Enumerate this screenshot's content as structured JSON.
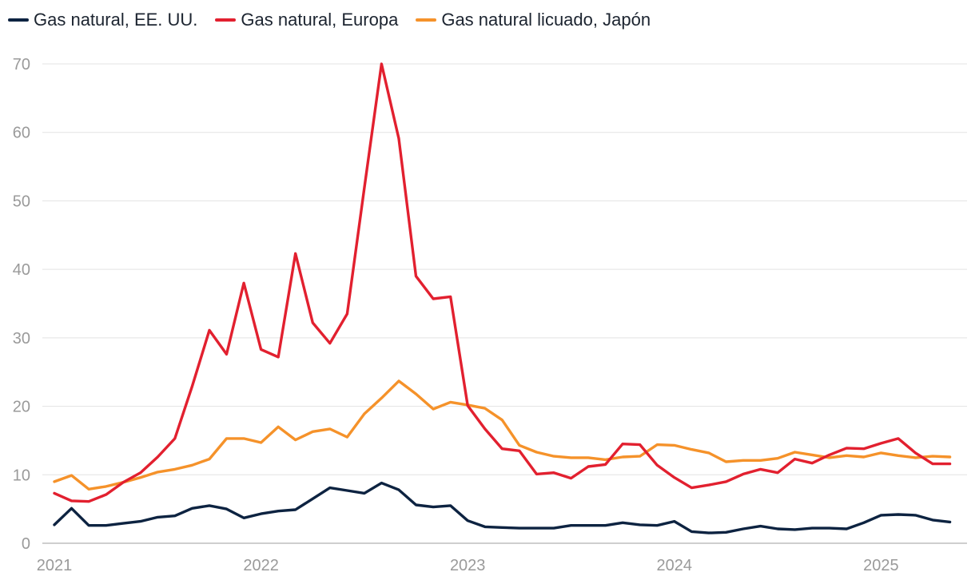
{
  "chart_data": {
    "type": "line",
    "title": "",
    "xlabel": "",
    "ylabel": "",
    "ylim": [
      0,
      70
    ],
    "yticks": [
      "0",
      "10",
      "20",
      "30",
      "40",
      "50",
      "60",
      "70"
    ],
    "xticks": [
      "2021",
      "2022",
      "2023",
      "2024",
      "2025"
    ],
    "x_start": "2021-01",
    "x_step": "month",
    "grid": true,
    "legend_position": "top-left",
    "series": [
      {
        "name": "Gas natural, EE. UU.",
        "color": "#0d2341",
        "values": [
          2.7,
          5.1,
          2.6,
          2.6,
          2.9,
          3.2,
          3.8,
          4.0,
          5.1,
          5.5,
          5.0,
          3.7,
          4.3,
          4.7,
          4.9,
          6.5,
          8.1,
          7.7,
          7.3,
          8.8,
          7.8,
          5.6,
          5.3,
          5.5,
          3.3,
          2.4,
          2.3,
          2.2,
          2.2,
          2.2,
          2.6,
          2.6,
          2.6,
          3.0,
          2.7,
          2.6,
          3.2,
          1.7,
          1.5,
          1.6,
          2.1,
          2.5,
          2.1,
          2.0,
          2.2,
          2.2,
          2.1,
          3.0,
          4.1,
          4.2,
          4.1,
          3.4,
          3.1
        ]
      },
      {
        "name": "Gas natural, Europa",
        "color": "#e2202f",
        "values": [
          7.3,
          6.2,
          6.1,
          7.1,
          8.9,
          10.3,
          12.6,
          15.3,
          22.9,
          31.1,
          27.6,
          38.0,
          28.3,
          27.2,
          42.3,
          32.2,
          29.2,
          33.5,
          51.9,
          70.0,
          59.1,
          39.0,
          35.7,
          36.0,
          20.1,
          16.7,
          13.8,
          13.5,
          10.1,
          10.3,
          9.5,
          11.2,
          11.5,
          14.5,
          14.4,
          11.4,
          9.6,
          8.1,
          8.5,
          9.0,
          10.1,
          10.8,
          10.3,
          12.3,
          11.7,
          12.9,
          13.9,
          13.8,
          14.6,
          15.3,
          13.2,
          11.6,
          11.6
        ]
      },
      {
        "name": "Gas natural licuado, Japón",
        "color": "#f5922a",
        "values": [
          9.0,
          9.9,
          7.9,
          8.3,
          8.9,
          9.6,
          10.4,
          10.8,
          11.4,
          12.3,
          15.3,
          15.3,
          14.7,
          17.0,
          15.1,
          16.3,
          16.7,
          15.5,
          18.9,
          21.2,
          23.7,
          21.8,
          19.6,
          20.6,
          20.2,
          19.7,
          18.0,
          14.3,
          13.3,
          12.7,
          12.5,
          12.5,
          12.2,
          12.6,
          12.7,
          14.4,
          14.3,
          13.7,
          13.2,
          11.9,
          12.1,
          12.1,
          12.4,
          13.3,
          12.9,
          12.5,
          12.8,
          12.6,
          13.2,
          12.8,
          12.5,
          12.7,
          12.6
        ]
      }
    ]
  }
}
